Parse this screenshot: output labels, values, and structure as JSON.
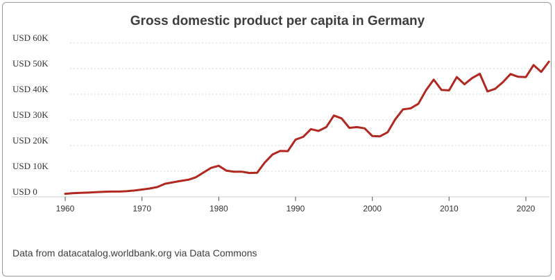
{
  "chart_data": {
    "type": "line",
    "title": "Gross domestic product per capita in Germany",
    "xlabel": "",
    "ylabel": "",
    "xlim": [
      1959,
      2023
    ],
    "ylim": [
      0,
      60000
    ],
    "y_ticks": [
      {
        "value": 0,
        "label": "USD 0"
      },
      {
        "value": 10000,
        "label": "USD 10K"
      },
      {
        "value": 20000,
        "label": "USD 20K"
      },
      {
        "value": 30000,
        "label": "USD 30K"
      },
      {
        "value": 40000,
        "label": "USD 40K"
      },
      {
        "value": 50000,
        "label": "USD 50K"
      },
      {
        "value": 60000,
        "label": "USD 60K"
      }
    ],
    "x_ticks": [
      {
        "value": 1960,
        "label": "1960"
      },
      {
        "value": 1970,
        "label": "1970"
      },
      {
        "value": 1980,
        "label": "1980"
      },
      {
        "value": 1990,
        "label": "1990"
      },
      {
        "value": 2000,
        "label": "2000"
      },
      {
        "value": 2010,
        "label": "2010"
      },
      {
        "value": 2020,
        "label": "2020"
      }
    ],
    "series": [
      {
        "name": "GDP per capita (USD)",
        "color": "#b0281f",
        "x": [
          1960,
          1961,
          1962,
          1963,
          1964,
          1965,
          1966,
          1967,
          1968,
          1969,
          1970,
          1971,
          1972,
          1973,
          1974,
          1975,
          1976,
          1977,
          1978,
          1979,
          1980,
          1981,
          1982,
          1983,
          1984,
          1985,
          1986,
          1987,
          1988,
          1989,
          1990,
          1991,
          1992,
          1993,
          1994,
          1995,
          1996,
          1997,
          1998,
          1999,
          2000,
          2001,
          2002,
          2003,
          2004,
          2005,
          2006,
          2007,
          2008,
          2009,
          2010,
          2011,
          2012,
          2013,
          2014,
          2015,
          2016,
          2017,
          2018,
          2019,
          2020,
          2021,
          2022,
          2023
        ],
        "values": [
          1200,
          1400,
          1550,
          1650,
          1800,
          1950,
          2050,
          2050,
          2200,
          2450,
          2850,
          3250,
          3800,
          5100,
          5650,
          6200,
          6650,
          7600,
          9450,
          11300,
          12100,
          10200,
          9800,
          9800,
          9300,
          9400,
          13400,
          16500,
          17900,
          17800,
          22300,
          23400,
          26400,
          25700,
          27200,
          31700,
          30600,
          26900,
          27200,
          26700,
          23700,
          23600,
          25200,
          30300,
          34100,
          34500,
          36300,
          41600,
          45700,
          41700,
          41500,
          46700,
          43900,
          46300,
          48000,
          41100,
          42100,
          44700,
          47900,
          46800,
          46700,
          51400,
          48700,
          52700
        ]
      }
    ],
    "grid": true,
    "legend": "none",
    "source_note": "Data from datacatalog.worldbank.org via Data Commons"
  }
}
